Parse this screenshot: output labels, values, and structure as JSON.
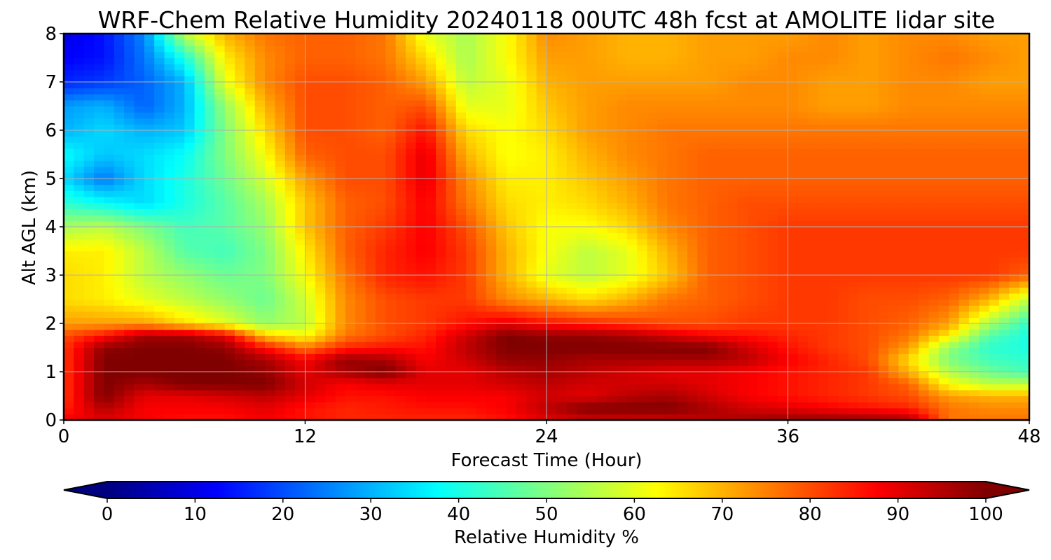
{
  "chart_data": {
    "type": "heatmap",
    "title": "WRF-Chem Relative Humidity 20240118 00UTC 48h fcst at AMOLITE lidar site",
    "xlabel": "Forecast Time (Hour)",
    "ylabel": "Alt AGL (km)",
    "xlim": [
      0,
      48
    ],
    "ylim": [
      0,
      8
    ],
    "x_ticks": [
      "0",
      "12",
      "24",
      "36",
      "48"
    ],
    "y_ticks": [
      "0",
      "1",
      "2",
      "3",
      "4",
      "5",
      "6",
      "7",
      "8"
    ],
    "grid": true,
    "colorbar": {
      "label": "Relative Humidity %",
      "orientation": "horizontal",
      "extend": "both",
      "colormap": "jet",
      "range": [
        0,
        100
      ],
      "ticks": [
        "0",
        "10",
        "20",
        "30",
        "40",
        "50",
        "60",
        "70",
        "80",
        "90",
        "100"
      ]
    },
    "z_units": "%",
    "x": [
      0,
      2,
      4,
      6,
      8,
      10,
      12,
      14,
      16,
      18,
      20,
      22,
      24,
      26,
      28,
      30,
      32,
      34,
      36,
      38,
      40,
      42,
      44,
      46,
      48
    ],
    "y": [
      0,
      0.25,
      0.5,
      0.75,
      1,
      1.25,
      1.5,
      1.75,
      2,
      2.5,
      3,
      3.5,
      4,
      4.5,
      5,
      5.5,
      6,
      6.5,
      7,
      7.5,
      8
    ],
    "z": [
      [
        88,
        90,
        88,
        86,
        86,
        88,
        86,
        84,
        84,
        84,
        84,
        86,
        90,
        92,
        92,
        92,
        94,
        96,
        98,
        98,
        98,
        96,
        76,
        76,
        76
      ],
      [
        84,
        95,
        88,
        88,
        88,
        90,
        86,
        84,
        85,
        86,
        86,
        88,
        94,
        100,
        100,
        100,
        96,
        92,
        90,
        88,
        86,
        84,
        76,
        74,
        74
      ],
      [
        82,
        100,
        90,
        90,
        92,
        94,
        90,
        86,
        86,
        88,
        88,
        88,
        92,
        90,
        94,
        96,
        92,
        88,
        86,
        84,
        82,
        80,
        72,
        70,
        70
      ],
      [
        82,
        100,
        96,
        100,
        100,
        100,
        92,
        88,
        90,
        90,
        90,
        92,
        94,
        92,
        92,
        92,
        90,
        88,
        86,
        84,
        82,
        78,
        62,
        56,
        56
      ],
      [
        82,
        100,
        100,
        100,
        100,
        98,
        90,
        96,
        100,
        90,
        90,
        94,
        96,
        94,
        92,
        90,
        90,
        88,
        86,
        84,
        82,
        70,
        55,
        48,
        44
      ],
      [
        82,
        100,
        100,
        100,
        100,
        96,
        88,
        98,
        96,
        88,
        92,
        98,
        98,
        96,
        96,
        96,
        96,
        94,
        88,
        84,
        80,
        66,
        50,
        44,
        42
      ],
      [
        82,
        98,
        100,
        100,
        98,
        86,
        76,
        84,
        86,
        86,
        94,
        100,
        100,
        100,
        100,
        100,
        100,
        92,
        86,
        82,
        80,
        72,
        52,
        42,
        40
      ],
      [
        80,
        86,
        96,
        96,
        90,
        68,
        62,
        76,
        80,
        84,
        92,
        100,
        98,
        98,
        96,
        92,
        88,
        86,
        84,
        82,
        80,
        76,
        64,
        46,
        40
      ],
      [
        72,
        72,
        72,
        66,
        60,
        52,
        56,
        74,
        80,
        82,
        86,
        90,
        86,
        84,
        82,
        80,
        80,
        82,
        82,
        82,
        80,
        78,
        72,
        54,
        42
      ],
      [
        66,
        64,
        60,
        56,
        52,
        48,
        58,
        74,
        80,
        82,
        82,
        74,
        70,
        66,
        70,
        76,
        78,
        80,
        82,
        82,
        80,
        80,
        78,
        70,
        56
      ],
      [
        66,
        64,
        56,
        52,
        48,
        50,
        62,
        76,
        84,
        86,
        82,
        70,
        60,
        56,
        60,
        68,
        78,
        80,
        82,
        82,
        82,
        82,
        82,
        82,
        78
      ],
      [
        64,
        64,
        56,
        46,
        44,
        50,
        64,
        78,
        84,
        88,
        82,
        70,
        62,
        56,
        60,
        70,
        78,
        80,
        82,
        82,
        82,
        82,
        82,
        82,
        82
      ],
      [
        54,
        56,
        50,
        44,
        46,
        52,
        68,
        78,
        82,
        88,
        80,
        68,
        62,
        62,
        66,
        74,
        78,
        80,
        82,
        82,
        82,
        82,
        82,
        82,
        82
      ],
      [
        42,
        38,
        34,
        40,
        46,
        54,
        68,
        78,
        80,
        88,
        76,
        66,
        64,
        66,
        70,
        76,
        78,
        80,
        80,
        80,
        80,
        80,
        80,
        80,
        80
      ],
      [
        34,
        24,
        34,
        40,
        48,
        58,
        72,
        80,
        80,
        90,
        74,
        64,
        64,
        68,
        72,
        76,
        78,
        78,
        78,
        78,
        78,
        78,
        78,
        78,
        78
      ],
      [
        38,
        32,
        34,
        38,
        50,
        62,
        78,
        80,
        80,
        90,
        70,
        62,
        64,
        70,
        74,
        76,
        78,
        78,
        78,
        78,
        78,
        78,
        78,
        78,
        78
      ],
      [
        30,
        34,
        30,
        32,
        50,
        66,
        80,
        80,
        78,
        86,
        66,
        62,
        66,
        72,
        74,
        76,
        76,
        76,
        76,
        76,
        76,
        76,
        76,
        76,
        76
      ],
      [
        28,
        30,
        22,
        30,
        52,
        70,
        80,
        80,
        78,
        80,
        60,
        60,
        68,
        72,
        74,
        74,
        74,
        74,
        74,
        72,
        72,
        74,
        74,
        74,
        74
      ],
      [
        16,
        18,
        22,
        30,
        60,
        74,
        80,
        80,
        78,
        72,
        56,
        60,
        70,
        72,
        72,
        72,
        72,
        74,
        74,
        72,
        72,
        74,
        74,
        72,
        72
      ],
      [
        12,
        14,
        24,
        40,
        64,
        74,
        78,
        78,
        76,
        66,
        54,
        62,
        72,
        72,
        70,
        70,
        72,
        72,
        74,
        74,
        72,
        74,
        76,
        74,
        72
      ],
      [
        10,
        14,
        26,
        56,
        70,
        76,
        78,
        78,
        76,
        60,
        54,
        62,
        74,
        72,
        70,
        70,
        72,
        72,
        72,
        74,
        72,
        74,
        74,
        72,
        72
      ]
    ]
  }
}
